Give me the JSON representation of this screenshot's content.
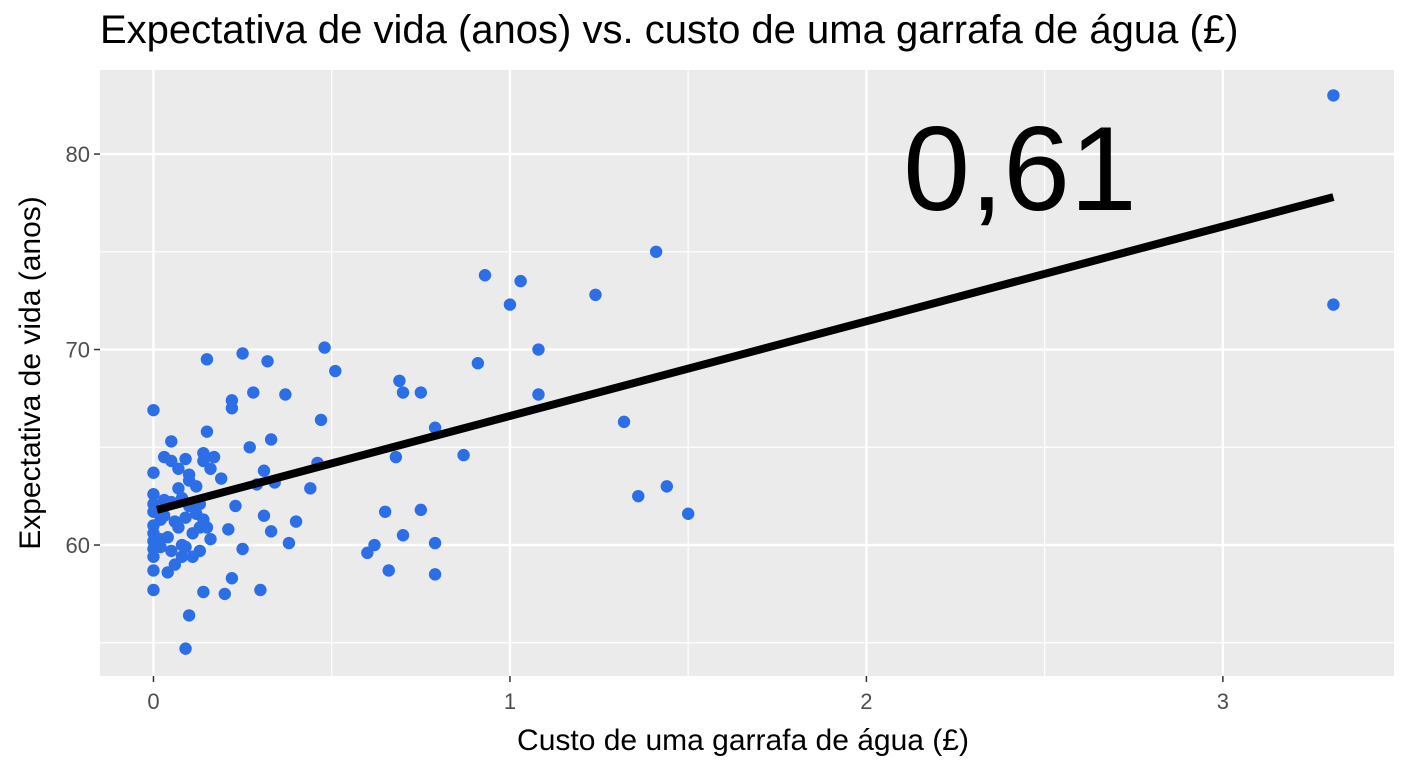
{
  "chart_data": {
    "type": "scatter",
    "title": "Expectativa de vida (anos) vs. custo de uma garrafa de água (£)",
    "xlabel": "Custo de uma garrafa de água (£)",
    "ylabel": "Expectativa de vida (anos)",
    "xlim": [
      -0.15,
      3.48
    ],
    "ylim": [
      53.3,
      84.3
    ],
    "x_ticks": [
      0,
      1,
      2,
      3
    ],
    "x_tick_labels": [
      "0",
      "1",
      "2",
      "3"
    ],
    "y_ticks": [
      60,
      70,
      80
    ],
    "y_tick_labels": [
      "60",
      "70",
      "80"
    ],
    "grid": true,
    "annotation": "0,61",
    "point_color": "#2c6ee6",
    "line_color": "#000000",
    "panel_color": "#ebebeb",
    "points": [
      [
        0.0,
        66.9
      ],
      [
        0.0,
        63.7
      ],
      [
        0.0,
        62.6
      ],
      [
        0.0,
        62.1
      ],
      [
        0.0,
        61.7
      ],
      [
        0.0,
        61.0
      ],
      [
        0.0,
        60.6
      ],
      [
        0.0,
        60.2
      ],
      [
        0.0,
        59.8
      ],
      [
        0.0,
        59.4
      ],
      [
        0.0,
        58.7
      ],
      [
        0.0,
        57.7
      ],
      [
        0.02,
        61.3
      ],
      [
        0.02,
        60.3
      ],
      [
        0.02,
        59.9
      ],
      [
        0.03,
        64.5
      ],
      [
        0.03,
        62.3
      ],
      [
        0.03,
        61.5
      ],
      [
        0.04,
        60.4
      ],
      [
        0.04,
        58.6
      ],
      [
        0.05,
        65.3
      ],
      [
        0.05,
        64.3
      ],
      [
        0.05,
        62.2
      ],
      [
        0.05,
        59.7
      ],
      [
        0.06,
        61.2
      ],
      [
        0.06,
        59.0
      ],
      [
        0.07,
        63.9
      ],
      [
        0.07,
        62.9
      ],
      [
        0.07,
        60.9
      ],
      [
        0.08,
        62.4
      ],
      [
        0.08,
        60.0
      ],
      [
        0.08,
        59.4
      ],
      [
        0.09,
        64.4
      ],
      [
        0.09,
        61.4
      ],
      [
        0.09,
        59.9
      ],
      [
        0.09,
        54.7
      ],
      [
        0.1,
        63.6
      ],
      [
        0.1,
        63.3
      ],
      [
        0.1,
        62.0
      ],
      [
        0.1,
        56.4
      ],
      [
        0.11,
        60.6
      ],
      [
        0.11,
        59.4
      ],
      [
        0.12,
        63.0
      ],
      [
        0.12,
        61.6
      ],
      [
        0.13,
        62.1
      ],
      [
        0.13,
        60.9
      ],
      [
        0.13,
        59.7
      ],
      [
        0.14,
        64.7
      ],
      [
        0.14,
        64.3
      ],
      [
        0.14,
        61.3
      ],
      [
        0.14,
        57.6
      ],
      [
        0.15,
        69.5
      ],
      [
        0.15,
        65.8
      ],
      [
        0.15,
        60.9
      ],
      [
        0.16,
        63.9
      ],
      [
        0.16,
        60.3
      ],
      [
        0.17,
        64.5
      ],
      [
        0.19,
        63.4
      ],
      [
        0.2,
        57.5
      ],
      [
        0.21,
        60.8
      ],
      [
        0.22,
        67.4
      ],
      [
        0.22,
        67.0
      ],
      [
        0.22,
        58.3
      ],
      [
        0.23,
        62.0
      ],
      [
        0.25,
        69.8
      ],
      [
        0.25,
        59.8
      ],
      [
        0.27,
        65.0
      ],
      [
        0.28,
        67.8
      ],
      [
        0.29,
        63.1
      ],
      [
        0.3,
        57.7
      ],
      [
        0.31,
        63.8
      ],
      [
        0.31,
        61.5
      ],
      [
        0.32,
        69.4
      ],
      [
        0.33,
        65.4
      ],
      [
        0.33,
        60.7
      ],
      [
        0.34,
        63.2
      ],
      [
        0.37,
        67.7
      ],
      [
        0.38,
        60.1
      ],
      [
        0.4,
        61.2
      ],
      [
        0.44,
        62.9
      ],
      [
        0.46,
        64.2
      ],
      [
        0.47,
        66.4
      ],
      [
        0.48,
        70.1
      ],
      [
        0.51,
        68.9
      ],
      [
        0.6,
        59.6
      ],
      [
        0.62,
        60.0
      ],
      [
        0.65,
        61.7
      ],
      [
        0.66,
        58.7
      ],
      [
        0.68,
        64.5
      ],
      [
        0.69,
        68.4
      ],
      [
        0.7,
        67.8
      ],
      [
        0.7,
        60.5
      ],
      [
        0.75,
        67.8
      ],
      [
        0.75,
        61.8
      ],
      [
        0.79,
        66.0
      ],
      [
        0.79,
        60.1
      ],
      [
        0.79,
        58.5
      ],
      [
        0.87,
        64.6
      ],
      [
        0.91,
        69.3
      ],
      [
        0.93,
        73.8
      ],
      [
        1.0,
        72.3
      ],
      [
        1.03,
        73.5
      ],
      [
        1.08,
        70.0
      ],
      [
        1.08,
        67.7
      ],
      [
        1.24,
        72.8
      ],
      [
        1.32,
        66.3
      ],
      [
        1.36,
        62.5
      ],
      [
        1.41,
        75.0
      ],
      [
        1.44,
        63.0
      ],
      [
        1.5,
        61.6
      ],
      [
        3.31,
        83.0
      ],
      [
        3.31,
        72.3
      ]
    ],
    "fit_line": {
      "x": [
        0.01,
        3.31
      ],
      "y": [
        61.8,
        77.8
      ]
    }
  }
}
